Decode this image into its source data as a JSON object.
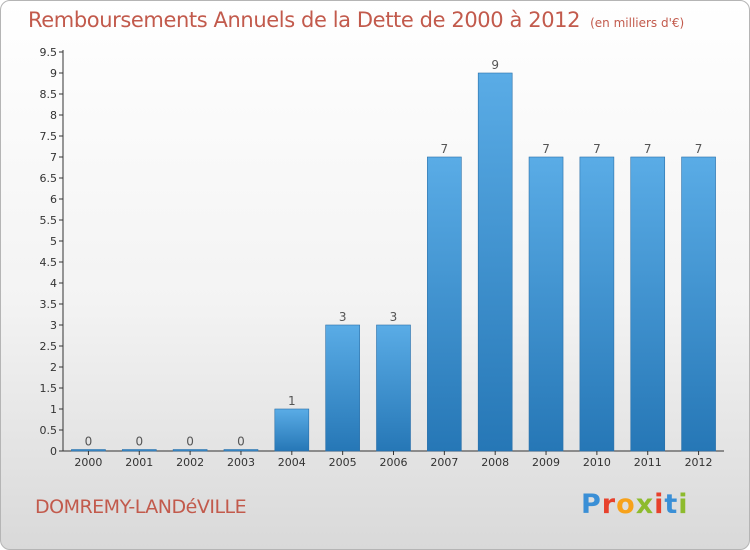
{
  "title": "Remboursements Annuels de la Dette de 2000 à 2012",
  "unit": "(en milliers d'€)",
  "commune": "DOMREMY-LANDéVILLE",
  "logo": {
    "letters": [
      "P",
      "r",
      "o",
      "x",
      "i",
      "t",
      "i"
    ],
    "colors": [
      "#3a8fd6",
      "#e7412c",
      "#f7a21b",
      "#8dbb2d",
      "#e7412c",
      "#3a8fd6",
      "#8dbb2d"
    ]
  },
  "colors": {
    "bar_top": "#5aace6",
    "bar_bottom": "#2677b6",
    "title": "#c25a4c"
  },
  "chart_data": {
    "type": "bar",
    "title": "Remboursements Annuels de la Dette de 2000 à 2012",
    "xlabel": "",
    "ylabel": "",
    "categories": [
      "2000",
      "2001",
      "2002",
      "2003",
      "2004",
      "2005",
      "2006",
      "2007",
      "2008",
      "2009",
      "2010",
      "2011",
      "2012"
    ],
    "values": [
      0,
      0,
      0,
      0,
      1,
      3,
      3,
      7,
      9,
      7,
      7,
      7,
      7
    ],
    "data_labels": [
      "0",
      "0",
      "0",
      "0",
      "1",
      "3",
      "3",
      "7",
      "9",
      "7",
      "7",
      "7",
      "7"
    ],
    "yticks": [
      "0",
      "0.5",
      "1",
      "1.5",
      "2",
      "2.5",
      "3",
      "3.5",
      "4",
      "4.5",
      "5",
      "5.5",
      "6",
      "6.5",
      "7",
      "7.5",
      "8",
      "8.5",
      "9",
      "9.5"
    ],
    "ylim": [
      0,
      9.5
    ],
    "grid": false,
    "legend": "none"
  }
}
